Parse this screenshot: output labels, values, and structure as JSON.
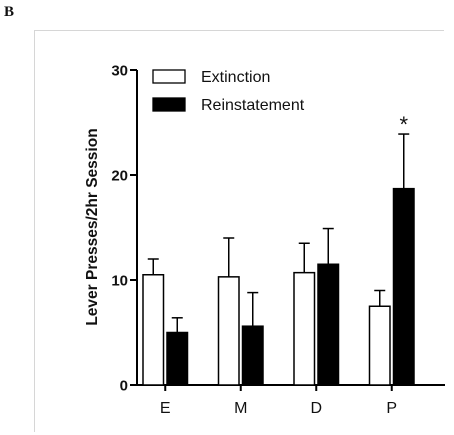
{
  "panel_label": "B",
  "chart_data": {
    "type": "bar",
    "categories": [
      "E",
      "M",
      "D",
      "P"
    ],
    "ylabel": "Lever Presses/2hr Session",
    "xlabel": "",
    "ylim": [
      0,
      30
    ],
    "yticks": [
      0,
      10,
      20,
      30
    ],
    "yticklabels": [
      "0",
      "10",
      "20",
      "30"
    ],
    "grid": false,
    "legend_placement": "top-left",
    "series": [
      {
        "name": "Extinction",
        "color": "#ffffff",
        "values": [
          10.5,
          10.3,
          10.7,
          7.5
        ],
        "errors": [
          1.5,
          3.7,
          2.8,
          1.5
        ]
      },
      {
        "name": "Reinstatement",
        "color": "#000000",
        "values": [
          5.0,
          5.6,
          11.5,
          18.7
        ],
        "errors": [
          1.4,
          3.2,
          3.4,
          5.2
        ]
      }
    ],
    "annotations": [
      {
        "text": "*",
        "category": "P",
        "series": "Reinstatement"
      }
    ]
  }
}
